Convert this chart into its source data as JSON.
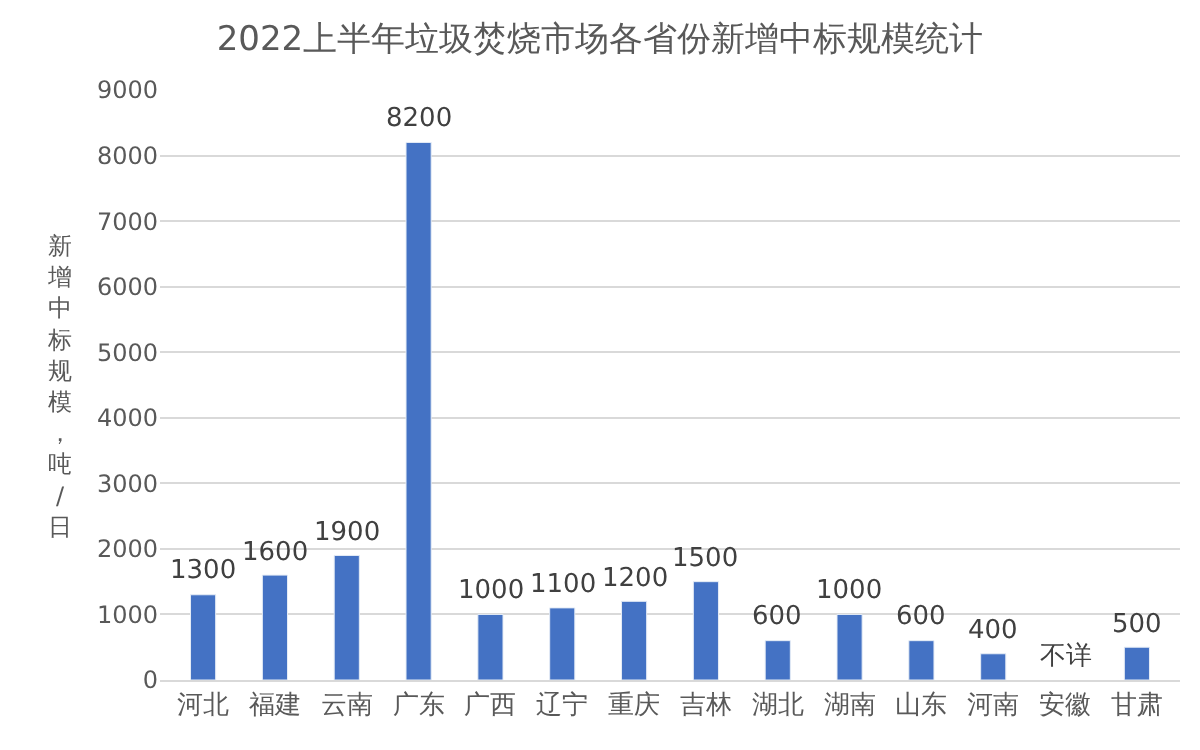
{
  "chart_data": {
    "type": "bar",
    "title": "2022上半年垃圾焚烧市场各省份新增中标规模统计",
    "ylabel": "新增中标规模，吨/日",
    "categories": [
      "河北",
      "福建",
      "云南",
      "广东",
      "广西",
      "辽宁",
      "重庆",
      "吉林",
      "湖北",
      "湖南",
      "山东",
      "河南",
      "安徽",
      "甘肃"
    ],
    "values": [
      1300,
      1600,
      1900,
      8200,
      1000,
      1100,
      1200,
      1500,
      600,
      1000,
      600,
      400,
      null,
      500
    ],
    "value_labels": [
      "1300",
      "1600",
      "1900",
      "8200",
      "1000",
      "1100",
      "1200",
      "1500",
      "600",
      "1000",
      "600",
      "400",
      "不详",
      "500"
    ],
    "color": "#4472c4",
    "ylim": [
      0,
      9000
    ],
    "yticks": [
      0,
      1000,
      2000,
      3000,
      4000,
      5000,
      6000,
      7000,
      8000,
      9000
    ],
    "grid": "y"
  }
}
